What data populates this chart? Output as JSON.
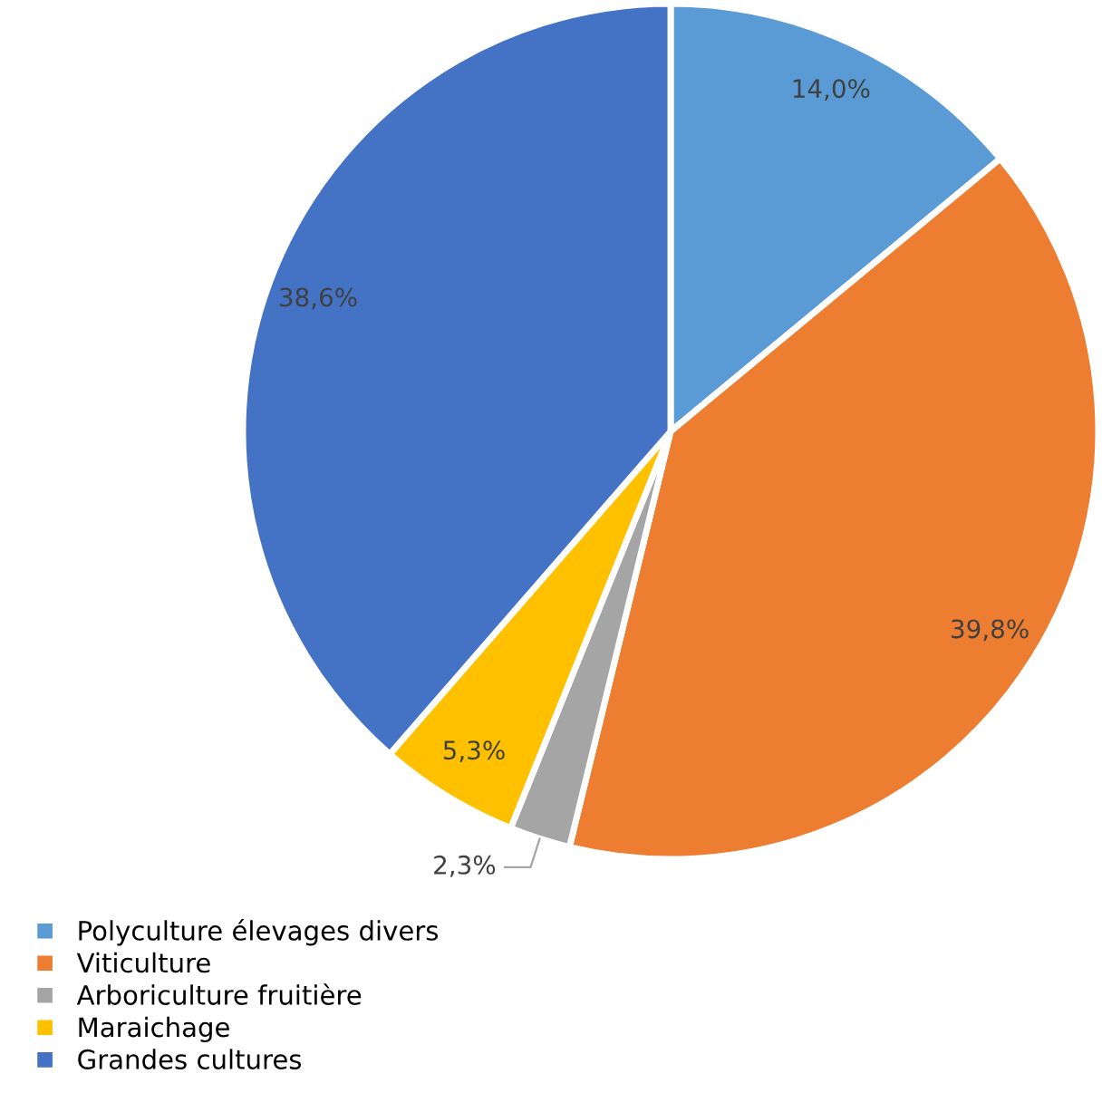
{
  "chart_data": {
    "type": "pie",
    "categories": [
      "Polyculture élevages divers",
      "Viticulture",
      "Arboriculture fruitière",
      "Maraichage",
      "Grandes cultures"
    ],
    "values": [
      14.0,
      39.8,
      2.3,
      5.3,
      38.6
    ],
    "colors": [
      "#5b9bd5",
      "#ed7d31",
      "#a5a5a5",
      "#ffc000",
      "#4472c4"
    ],
    "value_labels": [
      "14,0%",
      "39,8%",
      "2,3%",
      "5,3%",
      "38,6%"
    ],
    "legend": "bottom left"
  }
}
